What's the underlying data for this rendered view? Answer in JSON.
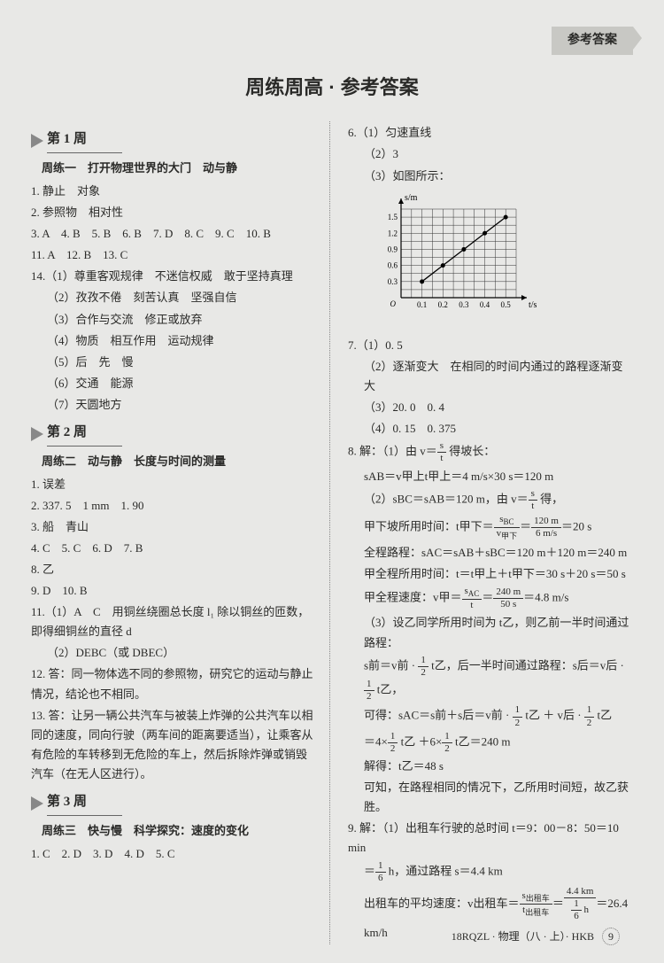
{
  "top_tag": "参考答案",
  "main_title": "周练周高 · 参考答案",
  "week1": {
    "label": "第 1 周",
    "sub": "周练一　打开物理世界的大门　动与静",
    "l1": "1. 静止　对象",
    "l2": "2. 参照物　相对性",
    "l3": "3. A　4. B　5. B　6. B　7. D　8. C　9. C　10. B",
    "l4": "11. A　12. B　13. C",
    "l5": "14.（1）尊重客观规律　不迷信权威　敢于坚持真理",
    "l6": "（2）孜孜不倦　刻苦认真　坚强自信",
    "l7": "（3）合作与交流　修正或放弃",
    "l8": "（4）物质　相互作用　运动规律",
    "l9": "（5）后　先　慢",
    "l10": "（6）交通　能源",
    "l11": "（7）天圆地方"
  },
  "week2": {
    "label": "第 2 周",
    "sub": "周练二　动与静　长度与时间的测量",
    "l1": "1. 误差",
    "l2": "2. 337. 5　1 mm　1. 90",
    "l3": "3. 船　青山",
    "l4": "4. C　5. C　6. D　7. B",
    "l5": "8. 乙",
    "l6": "9. D　10. B",
    "l7": "11.（1）A　C　用铜丝绕圈总长度 l₁ 除以铜丝的匝数，即得细铜丝的直径 d",
    "l8": "（2）DEBC（或 DBEC）",
    "l9": "12. 答：同一物体选不同的参照物，研究它的运动与静止情况，结论也不相同。",
    "l10": "13. 答：让另一辆公共汽车与被装上炸弹的公共汽车以相同的速度，同向行驶（两车间的距离要适当），让乘客从有危险的车转移到无危险的车上，然后拆除炸弹或销毁汽车（在无人区进行）。"
  },
  "week3": {
    "label": "第 3 周",
    "sub": "周练三　快与慢　科学探究：速度的变化",
    "l1": "1. C　2. D　3. D　4. D　5. C"
  },
  "right": {
    "q6_1": "6.（1）匀速直线",
    "q6_2": "（2）3",
    "q6_3": "（3）如图所示：",
    "q7_1": "7.（1）0. 5",
    "q7_2": "（2）逐渐变大　在相同的时间内通过的路程逐渐变大",
    "q7_3": "（3）20. 0　0. 4",
    "q7_4": "（4）0. 15　0. 375",
    "q8_1": "8. 解：（1）由 v＝",
    "q8_1b": " 得坡长：",
    "q8_2": "sAB＝v甲上t甲上＝4 m/s×30 s＝120 m",
    "q8_3": "（2）sBC＝sAB＝120 m，由 v＝",
    "q8_3b": " 得，",
    "q8_4a": "甲下坡所用时间：t甲下＝",
    "q8_4c": "＝20 s",
    "q8_5": "全程路程：sAC＝sAB＋sBC＝120 m＋120 m＝240 m",
    "q8_6": "甲全程所用时间：t＝t甲上＋t甲下＝30 s＋20 s＝50 s",
    "q8_7a": "甲全程速度：v甲＝",
    "q8_7c": "＝4.8 m/s",
    "q8_8": "（3）设乙同学所用时间为 t乙，则乙前一半时间通过路程：",
    "q8_9a": "s前＝v前 · ",
    "q8_9b": " t乙，后一半时间通过路程：s后＝v后 · ",
    "q8_9c": " t乙，",
    "q8_10a": "可得：sAC＝s前＋s后＝v前 · ",
    "q8_10b": " t乙 ＋ v后 · ",
    "q8_10c": " t乙",
    "q8_11a": "＝4×",
    "q8_11b": " t乙 ＋6×",
    "q8_11c": " t乙＝240 m",
    "q8_12": "解得：t乙＝48 s",
    "q8_13": "可知，在路程相同的情况下，乙所用时间短，故乙获胜。",
    "q9_1": "9. 解：（1）出租车行驶的总时间 t＝9：00－8：50＝10 min",
    "q9_2a": "＝",
    "q9_2b": " h，通过路程 s＝4.4 km",
    "q9_3a": "出租车的平均速度：v出租车＝",
    "q9_3d": "＝26.4 km/h"
  },
  "chart": {
    "xlabel": "t/s",
    "ylabel": "s/m",
    "xticks": [
      "0.1",
      "0.2",
      "0.3",
      "0.4",
      "0.5"
    ],
    "yticks": [
      "0.3",
      "0.6",
      "0.9",
      "1.2",
      "1.5"
    ],
    "points_x": [
      0.1,
      0.2,
      0.3,
      0.4,
      0.5
    ],
    "points_y": [
      0.3,
      0.6,
      0.9,
      1.2,
      1.5
    ],
    "grid_color": "#333",
    "line_color": "#000",
    "width": 170,
    "height": 130
  },
  "footer": "18RQZL · 物理（八 · 上）· HKB",
  "page": "9"
}
